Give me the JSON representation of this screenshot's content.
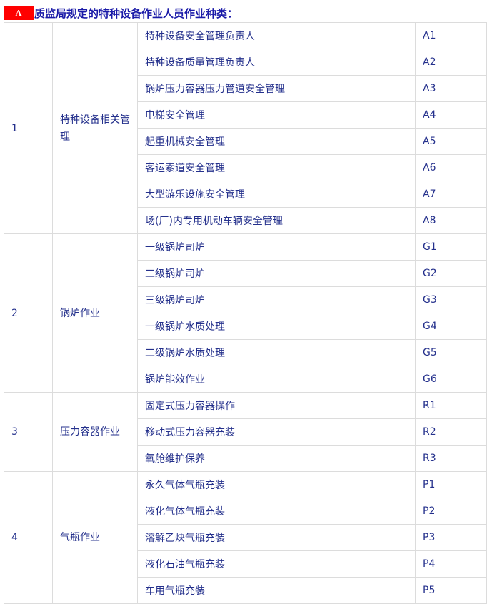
{
  "header": {
    "badge": "A",
    "title": "质监局规定的特种设备作业人员作业种类："
  },
  "colors": {
    "badge_bg": "#ff0000",
    "text": "#24308c",
    "border": "#dcdcdc"
  },
  "groups": [
    {
      "no": "1",
      "category": "特种设备相关管理",
      "items": [
        {
          "name": "特种设备安全管理负责人",
          "code": "A1"
        },
        {
          "name": "特种设备质量管理负责人",
          "code": "A2"
        },
        {
          "name": "锅炉压力容器压力管道安全管理",
          "code": "A3"
        },
        {
          "name": "电梯安全管理",
          "code": "A4"
        },
        {
          "name": "起重机械安全管理",
          "code": "A5"
        },
        {
          "name": "客运索道安全管理",
          "code": "A6"
        },
        {
          "name": "大型游乐设施安全管理",
          "code": "A7"
        },
        {
          "name": "场(厂)内专用机动车辆安全管理",
          "code": "A8"
        }
      ]
    },
    {
      "no": "2",
      "category": "锅炉作业",
      "items": [
        {
          "name": "一级锅炉司炉",
          "code": "G1"
        },
        {
          "name": "二级锅炉司炉",
          "code": "G2"
        },
        {
          "name": "三级锅炉司炉",
          "code": "G3"
        },
        {
          "name": "一级锅炉水质处理",
          "code": "G4"
        },
        {
          "name": "二级锅炉水质处理",
          "code": "G5"
        },
        {
          "name": "锅炉能效作业",
          "code": "G6"
        }
      ]
    },
    {
      "no": "3",
      "category": "压力容器作业",
      "items": [
        {
          "name": "固定式压力容器操作",
          "code": "R1"
        },
        {
          "name": "移动式压力容器充装",
          "code": "R2"
        },
        {
          "name": "氧舱维护保养",
          "code": "R3"
        }
      ]
    },
    {
      "no": "4",
      "category": "气瓶作业",
      "items": [
        {
          "name": "永久气体气瓶充装",
          "code": "P1"
        },
        {
          "name": "液化气体气瓶充装",
          "code": "P2"
        },
        {
          "name": "溶解乙炔气瓶充装",
          "code": "P3"
        },
        {
          "name": "液化石油气瓶充装",
          "code": "P4"
        },
        {
          "name": "车用气瓶充装",
          "code": "P5"
        }
      ]
    }
  ]
}
